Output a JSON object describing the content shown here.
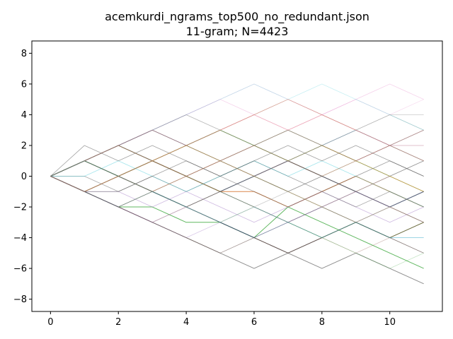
{
  "chart_data": {
    "type": "line",
    "title": "acemkurdi_ngrams_top500_no_redundant.json",
    "subtitle": "11-gram; N=4423",
    "xlabel": "",
    "ylabel": "",
    "xlim": [
      -0.55,
      11.55
    ],
    "ylim": [
      -8.8,
      8.8
    ],
    "xticks": [
      0,
      2,
      4,
      6,
      8,
      10
    ],
    "yticks": [
      -8,
      -6,
      -4,
      -2,
      0,
      2,
      4,
      6,
      8
    ],
    "grid": false,
    "legend": "none",
    "x": [
      0,
      1,
      2,
      3,
      4,
      5,
      6,
      7,
      8,
      9,
      10,
      11
    ],
    "series": [
      {
        "color": "#2f5f8a",
        "opacity": 0.85,
        "values": [
          0,
          1,
          2,
          1,
          0,
          -1,
          0,
          1,
          0,
          -1,
          -2,
          -1
        ]
      },
      {
        "color": "#d2691e",
        "opacity": 0.8,
        "values": [
          0,
          -1,
          0,
          1,
          0,
          -1,
          -1,
          -2,
          -1,
          0,
          -1,
          -2
        ]
      },
      {
        "color": "#2ca02c",
        "opacity": 0.75,
        "values": [
          0,
          -1,
          -2,
          -2,
          -3,
          -3,
          -4,
          -2,
          -3,
          -4,
          -5,
          -6
        ]
      },
      {
        "color": "#111111",
        "opacity": 0.75,
        "values": [
          0,
          1,
          0,
          -1,
          -2,
          -3,
          -4,
          -5,
          -4,
          -3,
          -4,
          -3
        ]
      },
      {
        "color": "#444444",
        "opacity": 0.6,
        "values": [
          0,
          -1,
          -2,
          -3,
          -4,
          -5,
          -6,
          -5,
          -6,
          -5,
          -6,
          -7
        ]
      },
      {
        "color": "#8c564b",
        "opacity": 0.55,
        "values": [
          0,
          -1,
          0,
          -1,
          0,
          1,
          0,
          -1,
          -2,
          -1,
          -2,
          -3
        ]
      },
      {
        "color": "#555555",
        "opacity": 0.55,
        "values": [
          0,
          2,
          1,
          2,
          1,
          0,
          1,
          0,
          -1,
          0,
          1,
          0
        ]
      },
      {
        "color": "#1f77b4",
        "opacity": 0.45,
        "values": [
          0,
          1,
          2,
          3,
          2,
          3,
          2,
          1,
          2,
          3,
          2,
          1
        ]
      },
      {
        "color": "#9467bd",
        "opacity": 0.45,
        "values": [
          0,
          -1,
          -1,
          -2,
          -1,
          -2,
          -3,
          -2,
          -1,
          -2,
          -3,
          -2
        ]
      },
      {
        "color": "#7f7f7f",
        "opacity": 0.5,
        "values": [
          0,
          1,
          0,
          1,
          2,
          1,
          0,
          -1,
          0,
          -1,
          0,
          1
        ]
      },
      {
        "color": "#bcbd22",
        "opacity": 0.4,
        "values": [
          0,
          -1,
          -2,
          -1,
          -2,
          -3,
          -2,
          -3,
          -4,
          -3,
          -2,
          -3
        ]
      },
      {
        "color": "#e377c2",
        "opacity": 0.35,
        "values": [
          0,
          1,
          2,
          3,
          4,
          5,
          4,
          5,
          4,
          5,
          6,
          5
        ]
      },
      {
        "color": "#555555",
        "opacity": 0.5,
        "values": [
          0,
          0,
          -1,
          0,
          -1,
          0,
          -1,
          -2,
          -1,
          -2,
          -1,
          -2
        ]
      },
      {
        "color": "#2ca02c",
        "opacity": 0.4,
        "values": [
          0,
          1,
          2,
          1,
          2,
          3,
          2,
          3,
          2,
          1,
          0,
          -1
        ]
      },
      {
        "color": "#8c564b",
        "opacity": 0.45,
        "values": [
          0,
          -1,
          -2,
          -3,
          -2,
          -1,
          0,
          1,
          0,
          -1,
          0,
          -1
        ]
      },
      {
        "color": "#7f7f7f",
        "opacity": 0.45,
        "values": [
          0,
          -1,
          0,
          -1,
          -2,
          -1,
          -2,
          -3,
          -2,
          -3,
          -4,
          -5
        ]
      },
      {
        "color": "#17becf",
        "opacity": 0.4,
        "values": [
          0,
          0,
          1,
          0,
          -1,
          0,
          1,
          0,
          1,
          0,
          -1,
          -2
        ]
      },
      {
        "color": "#d62728",
        "opacity": 0.35,
        "values": [
          0,
          1,
          2,
          1,
          2,
          1,
          2,
          3,
          4,
          3,
          2,
          3
        ]
      },
      {
        "color": "#444444",
        "opacity": 0.5,
        "values": [
          0,
          -1,
          -1,
          0,
          1,
          0,
          1,
          2,
          1,
          2,
          1,
          0
        ]
      },
      {
        "color": "#ff7f0e",
        "opacity": 0.35,
        "values": [
          0,
          1,
          0,
          -1,
          0,
          1,
          2,
          1,
          0,
          1,
          0,
          -1
        ]
      },
      {
        "color": "#9467bd",
        "opacity": 0.35,
        "values": [
          0,
          -1,
          -2,
          -3,
          -4,
          -3,
          -4,
          -3,
          -2,
          -3,
          -2,
          -1
        ]
      },
      {
        "color": "#555555",
        "opacity": 0.45,
        "values": [
          0,
          1,
          2,
          3,
          2,
          1,
          2,
          1,
          2,
          1,
          2,
          3
        ]
      },
      {
        "color": "#bcbd22",
        "opacity": 0.35,
        "values": [
          0,
          -1,
          0,
          1,
          2,
          1,
          0,
          -1,
          -2,
          -3,
          -4,
          -3
        ]
      },
      {
        "color": "#7f7f7f",
        "opacity": 0.35,
        "values": [
          0,
          1,
          2,
          3,
          4,
          3,
          4,
          5,
          4,
          3,
          4,
          3
        ]
      },
      {
        "color": "#e377c2",
        "opacity": 0.25,
        "values": [
          0,
          1,
          2,
          3,
          4,
          5,
          6,
          5,
          4,
          5,
          4,
          5
        ]
      },
      {
        "color": "#8c564b",
        "opacity": 0.35,
        "values": [
          0,
          -1,
          -2,
          -3,
          -4,
          -5,
          -4,
          -5,
          -4,
          -5,
          -4,
          -5
        ]
      },
      {
        "color": "#17becf",
        "opacity": 0.25,
        "values": [
          0,
          1,
          2,
          3,
          4,
          5,
          6,
          5,
          6,
          5,
          4,
          3
        ]
      },
      {
        "color": "#555555",
        "opacity": 0.4,
        "values": [
          0,
          -1,
          0,
          -1,
          -2,
          -1,
          0,
          -1,
          0,
          1,
          0,
          1
        ]
      },
      {
        "color": "#2ca02c",
        "opacity": 0.3,
        "values": [
          0,
          1,
          0,
          1,
          0,
          -1,
          -2,
          -3,
          -4,
          -5,
          -6,
          -5
        ]
      },
      {
        "color": "#7f7f7f",
        "opacity": 0.4,
        "values": [
          0,
          -1,
          -2,
          -1,
          0,
          -1,
          -2,
          -1,
          -2,
          -1,
          -2,
          -1
        ]
      },
      {
        "color": "#d62728",
        "opacity": 0.3,
        "values": [
          0,
          1,
          2,
          3,
          2,
          3,
          4,
          3,
          2,
          1,
          2,
          1
        ]
      },
      {
        "color": "#444444",
        "opacity": 0.4,
        "values": [
          0,
          1,
          0,
          1,
          2,
          3,
          2,
          1,
          0,
          -1,
          -2,
          -1
        ]
      },
      {
        "color": "#1f77b4",
        "opacity": 0.3,
        "values": [
          0,
          -1,
          -2,
          -1,
          -2,
          -3,
          -4,
          -3,
          -4,
          -3,
          -4,
          -4
        ]
      },
      {
        "color": "#7f7f7f",
        "opacity": 0.35,
        "values": [
          0,
          1,
          2,
          1,
          0,
          1,
          2,
          3,
          2,
          3,
          4,
          4
        ]
      },
      {
        "color": "#8c564b",
        "opacity": 0.35,
        "values": [
          0,
          -1,
          0,
          1,
          0,
          1,
          0,
          1,
          2,
          1,
          2,
          2
        ]
      },
      {
        "color": "#555555",
        "opacity": 0.35,
        "values": [
          0,
          -1,
          -2,
          -1,
          -2,
          -1,
          -2,
          -3,
          -4,
          -3,
          -2,
          -3
        ]
      },
      {
        "color": "#ff7f0e",
        "opacity": 0.25,
        "values": [
          0,
          1,
          2,
          1,
          2,
          3,
          4,
          5,
          4,
          3,
          2,
          1
        ]
      },
      {
        "color": "#9467bd",
        "opacity": 0.3,
        "values": [
          0,
          -1,
          -2,
          -3,
          -2,
          -3,
          -2,
          -3,
          -2,
          -1,
          -2,
          -3
        ]
      },
      {
        "color": "#7f7f7f",
        "opacity": 0.3,
        "values": [
          0,
          1,
          2,
          3,
          4,
          3,
          2,
          3,
          2,
          3,
          2,
          1
        ]
      },
      {
        "color": "#bcbd22",
        "opacity": 0.3,
        "values": [
          0,
          -1,
          0,
          1,
          2,
          3,
          2,
          1,
          2,
          1,
          0,
          -1
        ]
      },
      {
        "color": "#444444",
        "opacity": 0.35,
        "values": [
          0,
          -1,
          -2,
          -3,
          -4,
          -5,
          -4,
          -3,
          -2,
          -3,
          -4,
          -5
        ]
      },
      {
        "color": "#17becf",
        "opacity": 0.25,
        "values": [
          0,
          1,
          0,
          -1,
          -2,
          -3,
          -2,
          -3,
          -4,
          -3,
          -4,
          -4
        ]
      },
      {
        "color": "#e377c2",
        "opacity": 0.25,
        "values": [
          0,
          -1,
          0,
          1,
          2,
          3,
          4,
          3,
          4,
          3,
          2,
          2
        ]
      }
    ]
  }
}
